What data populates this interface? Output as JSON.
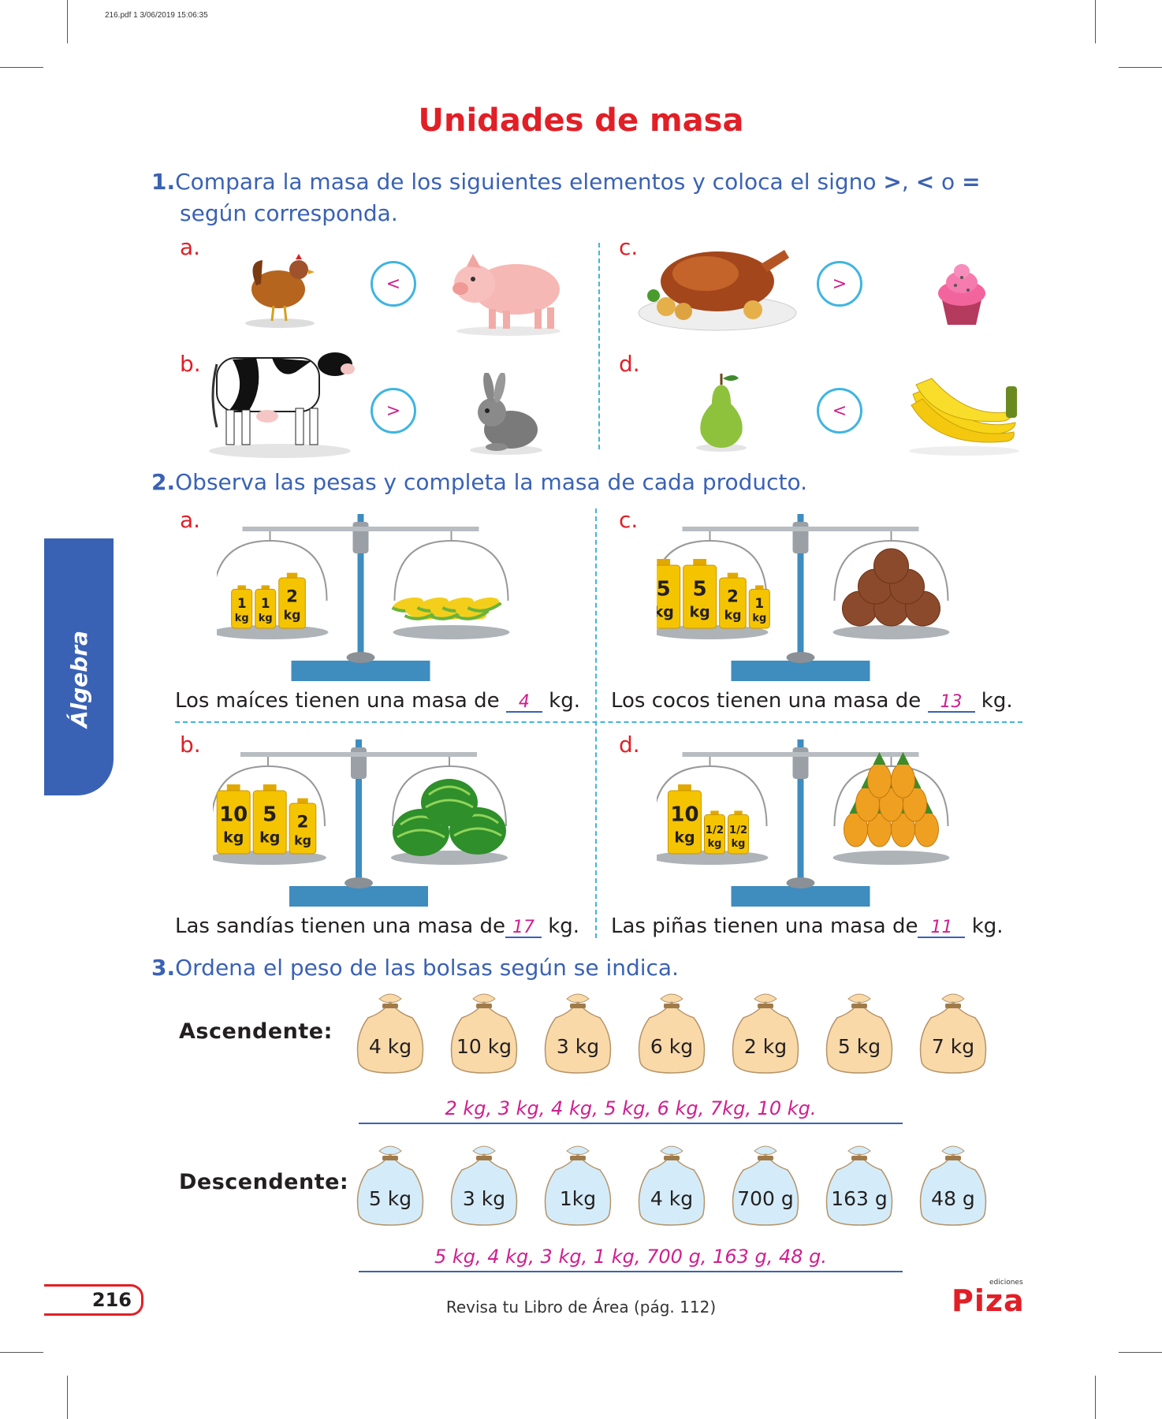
{
  "header": {
    "file_info": "216.pdf  1  3/06/2019  15:06:35"
  },
  "title": "Unidades de masa",
  "q1": {
    "number": "1.",
    "text_a": "Compara la masa de los siguientes elementos y coloca el signo ",
    "sym_gt": ">",
    "comma": ", ",
    "sym_lt": "<",
    "or": " o ",
    "sym_eq": "=",
    "text_b": "según corresponda.",
    "items": [
      {
        "letter": "a.",
        "left": "chicken-image",
        "sign": "<",
        "right": "pig-image"
      },
      {
        "letter": "b.",
        "left": "cow-image",
        "sign": ">",
        "right": "rabbit-image"
      },
      {
        "letter": "c.",
        "left": "roast-chicken-image",
        "sign": ">",
        "right": "cupcake-image"
      },
      {
        "letter": "d.",
        "left": "pear-image",
        "sign": "<",
        "right": "bananas-image"
      }
    ]
  },
  "q2": {
    "number": "2.",
    "text": "Observa las pesas y completa la masa de cada producto.",
    "items": [
      {
        "letter": "a.",
        "weights": [
          {
            "v": "1",
            "u": "kg"
          },
          {
            "v": "1",
            "u": "kg"
          },
          {
            "v": "2",
            "u": "kg"
          }
        ],
        "product": "corn-icon",
        "caption_a": "Los maíces tienen una masa de ",
        "answer": "4",
        "caption_b": " kg."
      },
      {
        "letter": "c.",
        "weights": [
          {
            "v": "5",
            "u": "kg"
          },
          {
            "v": "5",
            "u": "kg"
          },
          {
            "v": "2",
            "u": "kg"
          },
          {
            "v": "1",
            "u": "kg"
          }
        ],
        "product": "coconut-icon",
        "caption_a": "Los cocos tienen una masa de ",
        "answer": "13",
        "caption_b": " kg."
      },
      {
        "letter": "b.",
        "weights": [
          {
            "v": "10",
            "u": "kg"
          },
          {
            "v": "5",
            "u": "kg"
          },
          {
            "v": "2",
            "u": "kg"
          }
        ],
        "product": "watermelon-icon",
        "caption_a": "Las sandías tienen una masa de",
        "answer": "17",
        "caption_b": " kg."
      },
      {
        "letter": "d.",
        "weights": [
          {
            "v": "10",
            "u": "kg"
          },
          {
            "v": "1/2",
            "u": "kg"
          },
          {
            "v": "1/2",
            "u": "kg"
          }
        ],
        "product": "pineapple-icon",
        "caption_a": "Las piñas tienen una masa de",
        "answer": "11",
        "caption_b": " kg."
      }
    ]
  },
  "q3": {
    "number": "3.",
    "text": "Ordena el peso de las bolsas según se indica.",
    "ascending": {
      "label": "Ascendente:",
      "bags": [
        "4 kg",
        "10 kg",
        "3 kg",
        "6 kg",
        "2 kg",
        "5 kg",
        "7 kg"
      ],
      "answer": "2 kg, 3 kg, 4 kg, 5 kg, 6 kg, 7kg, 10 kg.",
      "color": "#f9d9a8"
    },
    "descending": {
      "label": "Descendente:",
      "bags": [
        "5 kg",
        "3 kg",
        "1kg",
        "4 kg",
        "700 g",
        "163 g",
        "48 g"
      ],
      "answer": "5 kg, 4 kg, 3 kg, 1 kg, 700 g, 163 g, 48 g.",
      "color": "#d4ecf9"
    }
  },
  "side_tab": "Álgebra",
  "page_number": "216",
  "footer": "Revisa tu Libro de Área (pág. 112)",
  "logo": {
    "small": "ediciones",
    "main": "Piza"
  },
  "colors": {
    "red": "#e11f26",
    "blue": "#3a62b4",
    "magenta": "#cf1f8f",
    "cyan": "#3fb5e0"
  }
}
